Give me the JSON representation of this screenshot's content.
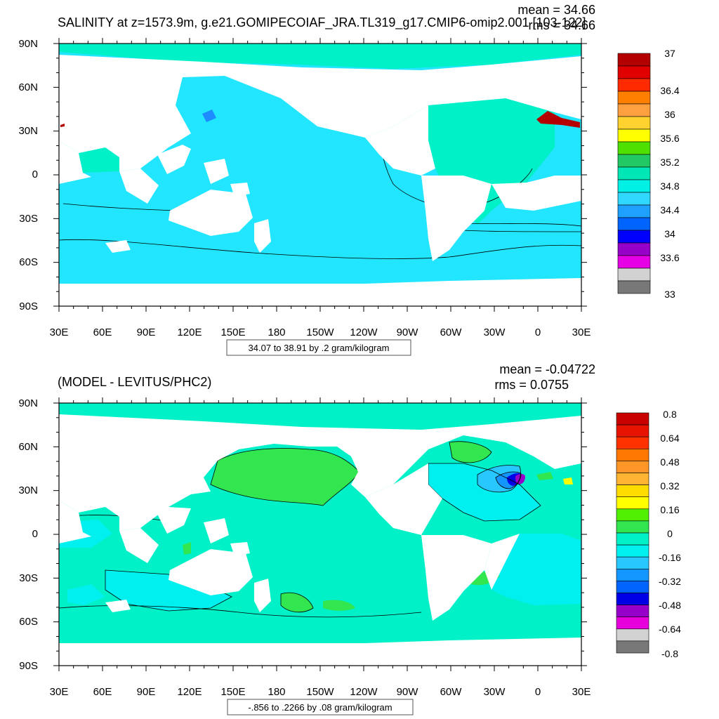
{
  "panels": [
    {
      "id": "salinity",
      "title": "SALINITY at z=1573.9m, g.e21.GOMIPECOIAF_JRA.TL319_g17.CMIP6-omip2.001 [103-122]",
      "mean_text": "mean = 34.66",
      "rms_text": "rms = 34.66",
      "range_label": "34.07 to 38.91 by .2 gram/kilogram",
      "lat_ticks": [
        "90N",
        "60N",
        "30N",
        "0",
        "30S",
        "60S",
        "90S"
      ],
      "lon_ticks": [
        "30E",
        "60E",
        "90E",
        "120E",
        "150E",
        "180",
        "150W",
        "120W",
        "90W",
        "60W",
        "30W",
        "0",
        "30E"
      ],
      "colorbar": {
        "labels": [
          "37",
          "36.4",
          "36",
          "35.6",
          "35.2",
          "34.8",
          "34.4",
          "34",
          "33.6",
          "33"
        ],
        "colors": [
          "#b40000",
          "#e00000",
          "#ff2a00",
          "#ff7f00",
          "#ffa040",
          "#ffd230",
          "#ffff00",
          "#50e000",
          "#22c864",
          "#00e6b4",
          "#00f0e6",
          "#30d8ff",
          "#1ea0ff",
          "#0064ff",
          "#0000ff",
          "#9600c8",
          "#e600e6",
          "#d2d2d2",
          "#787878"
        ]
      },
      "fill_color": "#22e6ff",
      "region_colors": {
        "cyan": "#22e6ff",
        "teal": "#00f0c8",
        "blue": "#1e8cff",
        "dark_red": "#b40000",
        "land": "#ffffff"
      }
    },
    {
      "id": "difference",
      "title": "(MODEL - LEVITUS/PHC2)",
      "mean_text": "mean = -0.04722",
      "rms_text": "rms = 0.0755",
      "range_label": "-.856 to .2266 by .08 gram/kilogram",
      "lat_ticks": [
        "90N",
        "60N",
        "30N",
        "0",
        "30S",
        "60S",
        "90S"
      ],
      "lon_ticks": [
        "30E",
        "60E",
        "90E",
        "120E",
        "150E",
        "180",
        "150W",
        "120W",
        "90W",
        "60W",
        "30W",
        "0",
        "30E"
      ],
      "colorbar": {
        "labels": [
          "0.8",
          "0.64",
          "0.48",
          "0.32",
          "0.16",
          "0",
          "-0.16",
          "-0.32",
          "-0.48",
          "-0.64",
          "-0.8"
        ],
        "colors": [
          "#c80000",
          "#e61400",
          "#ff3200",
          "#ff7800",
          "#ff9628",
          "#ffb432",
          "#ffdc00",
          "#ffff00",
          "#50f000",
          "#32e650",
          "#00f0c8",
          "#00f0f0",
          "#28c8ff",
          "#1496ff",
          "#0064ff",
          "#0000e6",
          "#9600c8",
          "#e600dc",
          "#d2d2d2",
          "#787878"
        ]
      },
      "fill_color": "#00f0c8",
      "region_colors": {
        "teal": "#00f0c8",
        "cyan": "#00f0f0",
        "green": "#32e650",
        "lightblue": "#28c8ff",
        "blue": "#1496ff",
        "darkblue": "#0000e6",
        "purple": "#9600c8",
        "yellow": "#ffff00",
        "land": "#ffffff"
      }
    }
  ]
}
